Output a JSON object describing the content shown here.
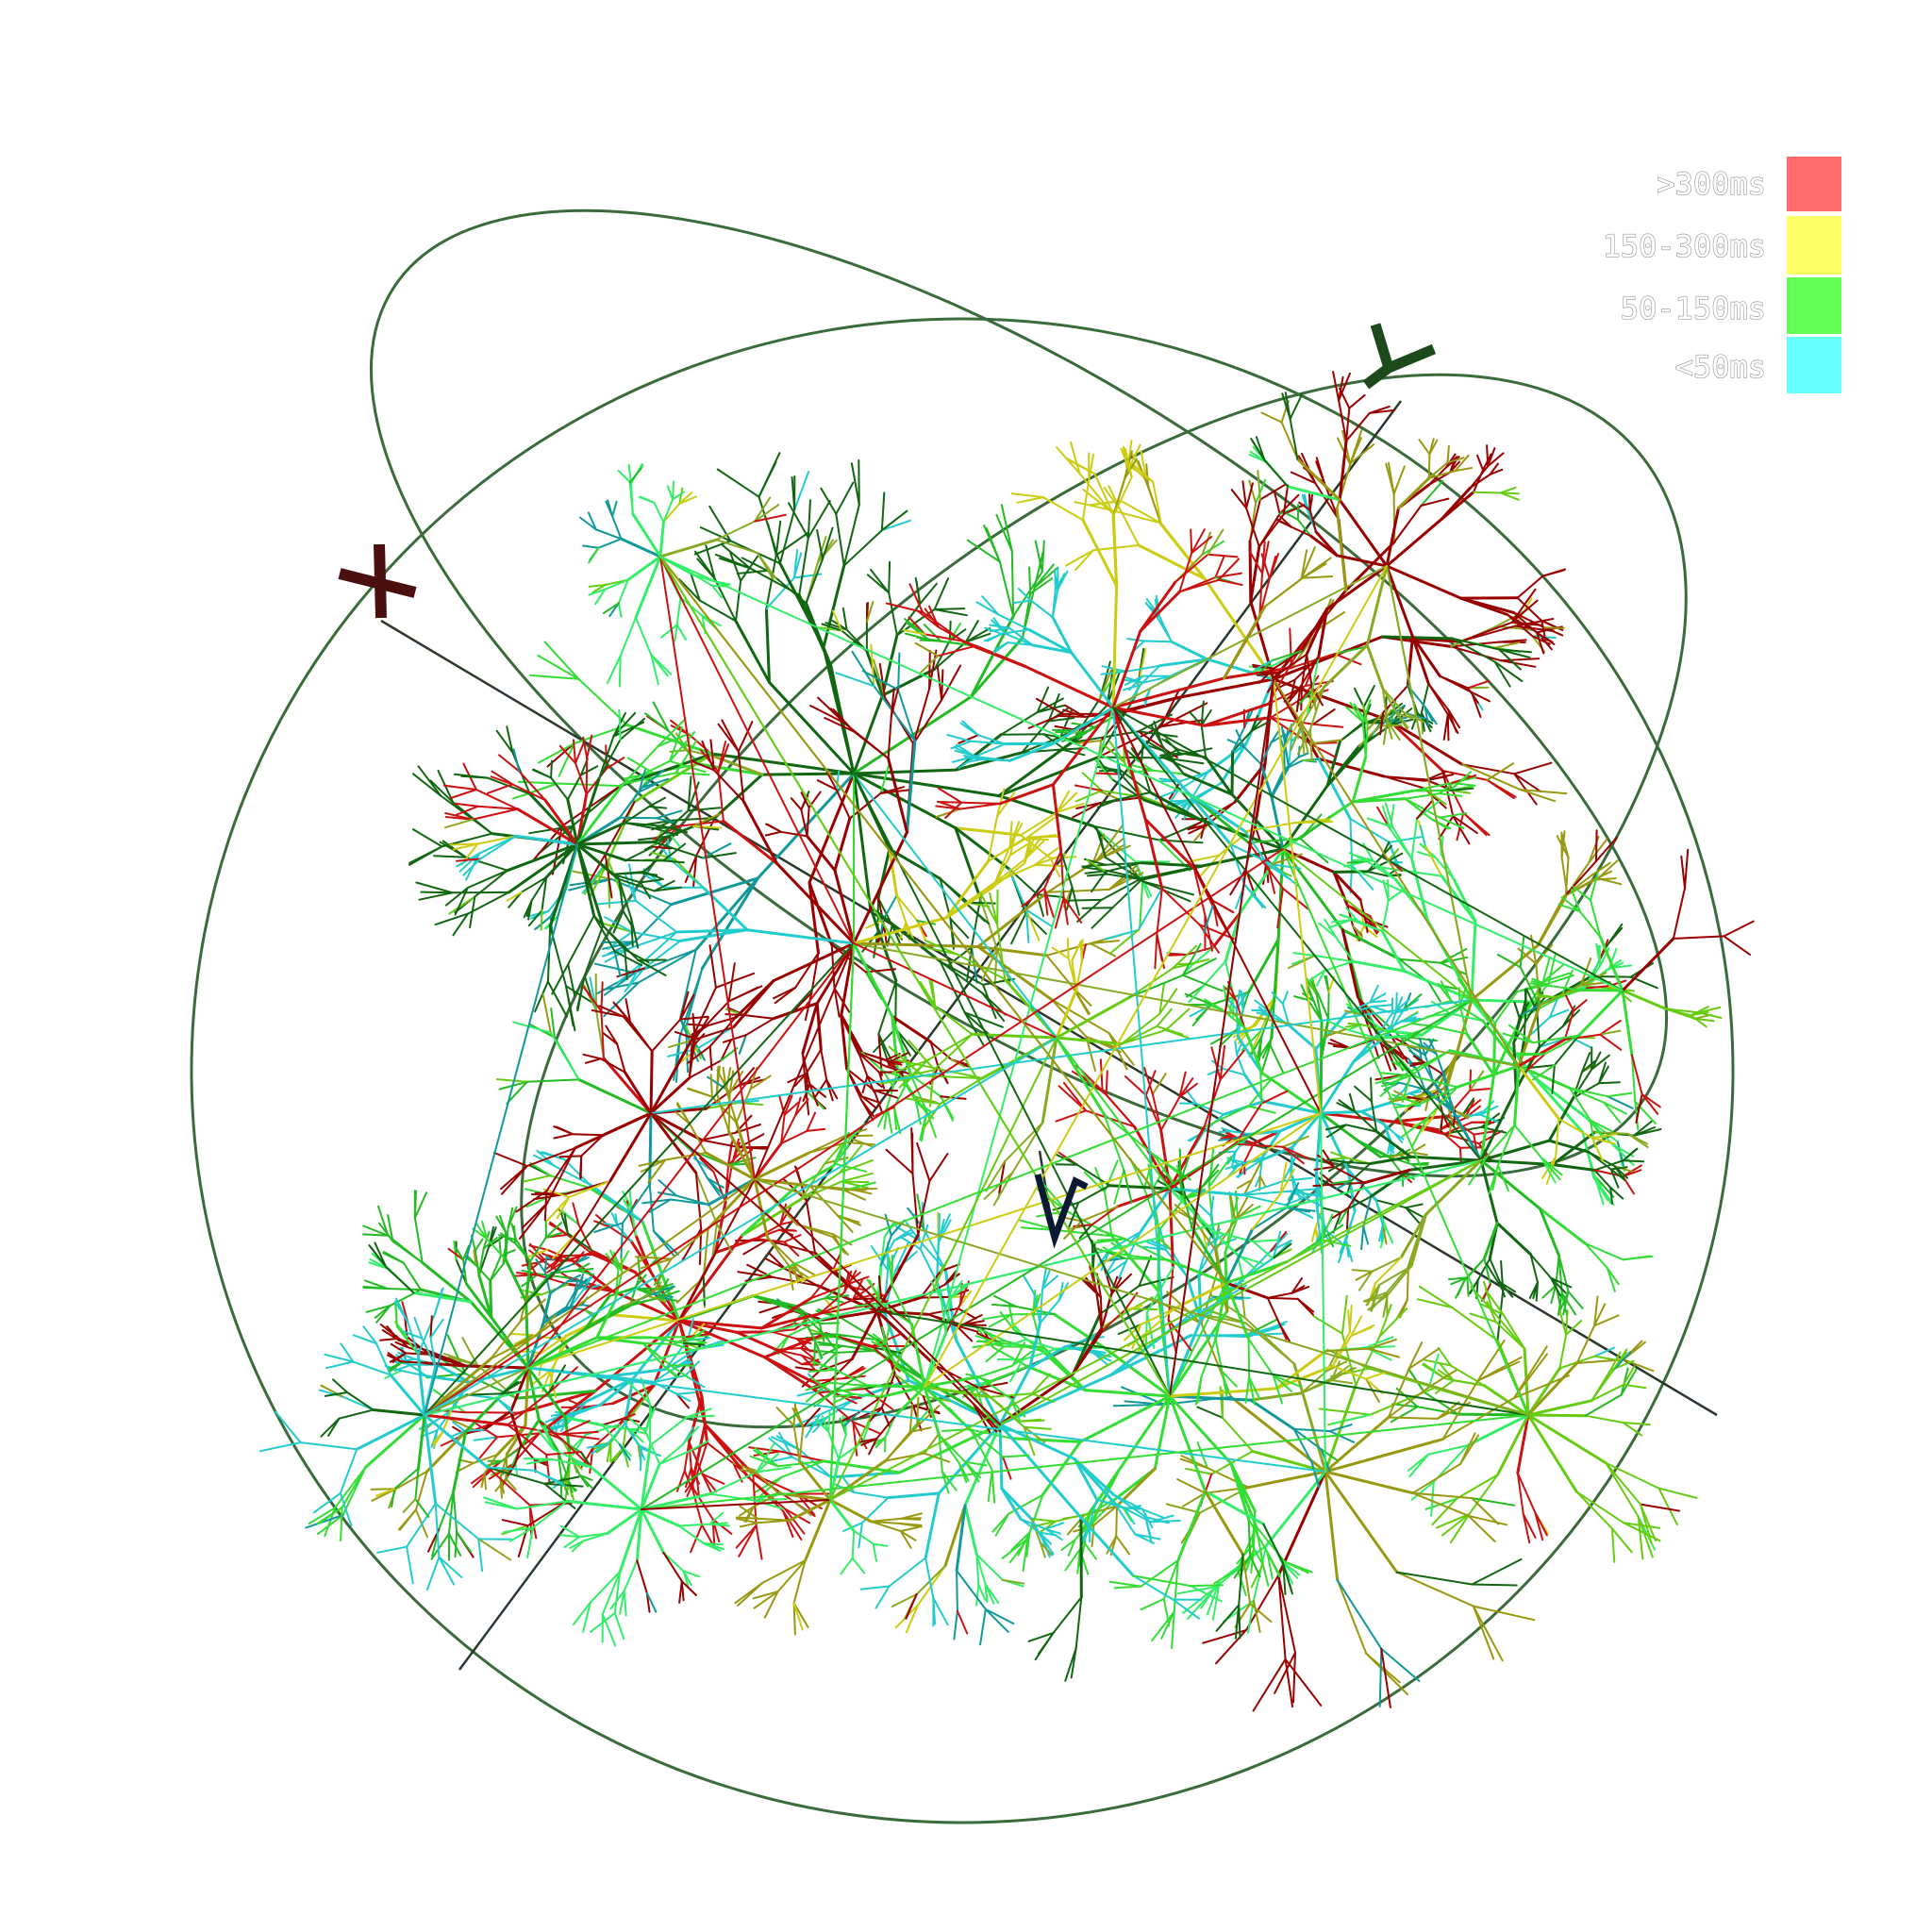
{
  "legend": [
    {
      "label": ">300ms",
      "color": "#ff6b6b"
    },
    {
      "label": "150-300ms",
      "color": "#ffff66"
    },
    {
      "label": "50-150ms",
      "color": "#66ff55"
    },
    {
      "label": "<50ms",
      "color": "#66ffff"
    }
  ],
  "axes": {
    "x_label": "X",
    "y_label": "Y",
    "z_label": "Z",
    "ring_color": "#3a6b3a",
    "axis_line_color": "#2a3a2a"
  },
  "graph_palette": [
    "#22bb22",
    "#33dd33",
    "#66cc11",
    "#cccc11",
    "#999911",
    "#cc1111",
    "#990000",
    "#116611",
    "#22cccc",
    "#119999",
    "#33ee66",
    "#88aa22"
  ]
}
